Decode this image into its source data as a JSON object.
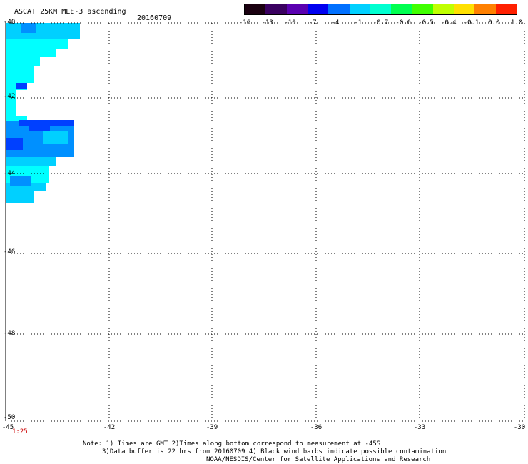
{
  "header": {
    "title": "ASCAT 25KM MLE-3 ascending",
    "date": "20160709"
  },
  "colorbar": {
    "labels": [
      "-16",
      "-13",
      "-10",
      "-7",
      "-4",
      "-1",
      "-0.7",
      "-0.6",
      "-0.5",
      "-0.4",
      "-0.1",
      "0.0",
      "1.0"
    ],
    "colors": [
      "#1a0010",
      "#3a0060",
      "#5a00b0",
      "#0000f0",
      "#0070ff",
      "#00d0ff",
      "#00ffd0",
      "#00ff50",
      "#40ff00",
      "#c0ff00",
      "#ffe000",
      "#ff8000",
      "#ff2000"
    ]
  },
  "axes": {
    "y_ticks": [
      "-40",
      "-42",
      "-44",
      "-46",
      "-48",
      "-50"
    ],
    "x_ticks": [
      "-45",
      "-42",
      "-39",
      "-36",
      "-33",
      "-30"
    ]
  },
  "time_label": "1:25",
  "notes": {
    "line1": "Note: 1) Times are GMT 2)Times along bottom correspond to measurement at -45S",
    "line2": "3)Data buffer is 22 hrs from 20160709 4) Black wind barbs indicate possible contamination",
    "line3": "NOAA/NESDIS/Center for Satellite Applications and Research"
  },
  "colors": {
    "swath_light": "#00ffff",
    "swath_mid": "#00d0ff",
    "swath_dark": "#0090ff",
    "swath_deep": "#0040ff"
  }
}
